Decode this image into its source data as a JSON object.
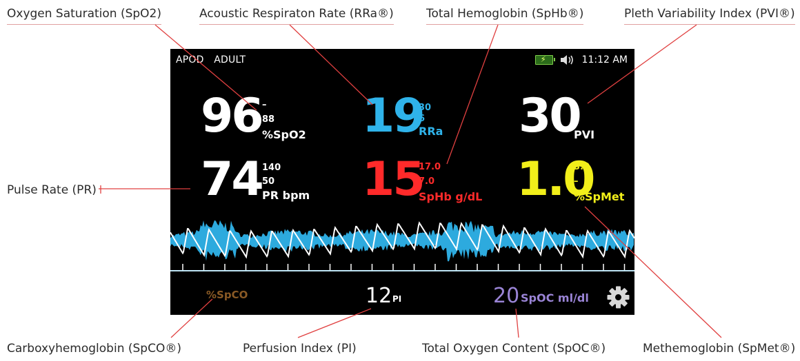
{
  "callouts": {
    "spo2": "Oxygen Saturation (SpO2)",
    "rra": "Acoustic Respiraton Rate (RRa®)",
    "sphb": "Total Hemoglobin (SpHb®)",
    "pvi": "Pleth Variability Index (PVI®)",
    "pr": "Pulse Rate (PR)",
    "spco": "Carboxyhemoglobin (SpCO®)",
    "pi": "Perfusion Index (PI)",
    "spoc": "Total Oxygen Content (SpOC®)",
    "spmet": "Methemoglobin (SpMet®)"
  },
  "screen": {
    "mode": [
      "APOD",
      "ADULT"
    ],
    "time": "11:12 AM",
    "icons": [
      "battery-charging-icon",
      "speaker-icon",
      "gear-icon"
    ],
    "params": {
      "spo2": {
        "value": "96",
        "high": "–",
        "low": "88",
        "unit": "%SpO2",
        "color": "#ffffff"
      },
      "rra": {
        "value": "19",
        "high": "30",
        "low": "6",
        "unit": "RRa",
        "color": "#2fb3ea"
      },
      "pvi": {
        "value": "30",
        "high": "–",
        "low": "–",
        "unit": "PVI",
        "color": "#ffffff"
      },
      "pr": {
        "value": "74",
        "high": "140",
        "low": "50",
        "unit": "PR bpm",
        "color": "#ffffff"
      },
      "sphb": {
        "value": "15",
        "high": "17.0",
        "low": "7.0",
        "unit": "SpHb g/dL",
        "color": "#ff2a2a"
      },
      "spmet": {
        "value": "1.0",
        "high": "3.0",
        "low": "–",
        "unit": "%SpMet",
        "color": "#f2ef1a"
      }
    },
    "bottom": {
      "spco_label": "%SpCO",
      "pi_value": "12",
      "pi_unit": "PI",
      "spoc_value": "20",
      "spoc_unit": "SpOC ml/dl"
    }
  },
  "colors": {
    "leader": "#e04040",
    "acoustic_wave": "#2fb3ea",
    "pleth_wave": "#ffffff",
    "spco": "#8a5a25",
    "spoc": "#9a84d6"
  }
}
